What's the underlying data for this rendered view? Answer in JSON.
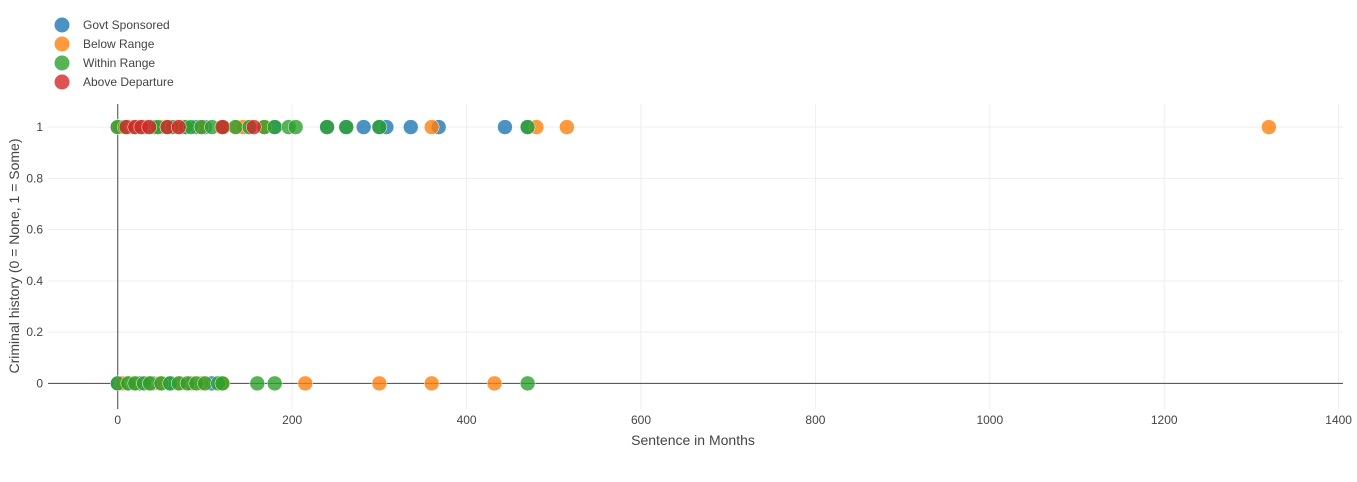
{
  "chart_data": {
    "type": "scatter",
    "xlabel": "Sentence in Months",
    "ylabel": "Criminal history (0 = None, 1 = Some)",
    "xlim": [
      -80,
      1405
    ],
    "ylim": [
      -0.1,
      1.09
    ],
    "x_ticks": [
      0,
      200,
      400,
      600,
      800,
      1000,
      1200,
      1400
    ],
    "y_ticks": [
      0,
      0.2,
      0.4,
      0.6,
      0.8,
      1
    ],
    "grid": true,
    "legend_position": "top-left",
    "series": [
      {
        "name": "Govt Sponsored",
        "color": "#1f77b4",
        "points": [
          [
            0,
            1
          ],
          [
            5,
            1
          ],
          [
            12,
            1
          ],
          [
            20,
            1
          ],
          [
            30,
            1
          ],
          [
            45,
            1
          ],
          [
            60,
            1
          ],
          [
            75,
            1
          ],
          [
            90,
            1
          ],
          [
            100,
            1
          ],
          [
            120,
            1
          ],
          [
            150,
            1
          ],
          [
            180,
            1
          ],
          [
            240,
            1
          ],
          [
            262,
            1
          ],
          [
            282,
            1
          ],
          [
            300,
            1
          ],
          [
            308,
            1
          ],
          [
            336,
            1
          ],
          [
            368,
            1
          ],
          [
            444,
            1
          ],
          [
            470,
            1
          ],
          [
            0,
            0
          ],
          [
            10,
            0
          ],
          [
            25,
            0
          ],
          [
            40,
            0
          ],
          [
            60,
            0
          ],
          [
            84,
            0
          ],
          [
            108,
            0
          ]
        ]
      },
      {
        "name": "Below Range",
        "color": "#ff7f0e",
        "points": [
          [
            2,
            1
          ],
          [
            15,
            1
          ],
          [
            30,
            1
          ],
          [
            50,
            1
          ],
          [
            70,
            1
          ],
          [
            96,
            1
          ],
          [
            120,
            1
          ],
          [
            137,
            1
          ],
          [
            144,
            1
          ],
          [
            168,
            1
          ],
          [
            360,
            1
          ],
          [
            480,
            1
          ],
          [
            515,
            1
          ],
          [
            1320,
            1
          ],
          [
            5,
            0
          ],
          [
            18,
            0
          ],
          [
            36,
            0
          ],
          [
            48,
            0
          ],
          [
            72,
            0
          ],
          [
            84,
            0
          ],
          [
            96,
            0
          ],
          [
            120,
            0
          ],
          [
            215,
            0
          ],
          [
            300,
            0
          ],
          [
            360,
            0
          ],
          [
            432,
            0
          ]
        ]
      },
      {
        "name": "Within Range",
        "color": "#2ca02c",
        "points": [
          [
            0,
            1
          ],
          [
            8,
            1
          ],
          [
            18,
            1
          ],
          [
            24,
            1
          ],
          [
            33,
            1
          ],
          [
            42,
            1
          ],
          [
            46,
            1
          ],
          [
            57,
            1
          ],
          [
            63,
            1
          ],
          [
            78,
            1
          ],
          [
            84,
            1
          ],
          [
            96,
            1
          ],
          [
            108,
            1
          ],
          [
            121,
            1
          ],
          [
            135,
            1
          ],
          [
            151,
            1
          ],
          [
            168,
            1
          ],
          [
            180,
            1
          ],
          [
            196,
            1
          ],
          [
            204,
            1
          ],
          [
            240,
            1
          ],
          [
            262,
            1
          ],
          [
            300,
            1
          ],
          [
            470,
            1
          ],
          [
            0,
            0
          ],
          [
            12,
            0
          ],
          [
            20,
            0
          ],
          [
            30,
            0
          ],
          [
            37,
            0
          ],
          [
            50,
            0
          ],
          [
            60,
            0
          ],
          [
            70,
            0
          ],
          [
            80,
            0
          ],
          [
            90,
            0
          ],
          [
            100,
            0
          ],
          [
            115,
            0
          ],
          [
            120,
            0
          ],
          [
            160,
            0
          ],
          [
            180,
            0
          ],
          [
            470,
            0
          ]
        ]
      },
      {
        "name": "Above Departure",
        "color": "#d62728",
        "points": [
          [
            10,
            1
          ],
          [
            20,
            1
          ],
          [
            27,
            1
          ],
          [
            36,
            1
          ],
          [
            57,
            1
          ],
          [
            70,
            1
          ],
          [
            120,
            1
          ],
          [
            156,
            1
          ]
        ]
      }
    ]
  }
}
